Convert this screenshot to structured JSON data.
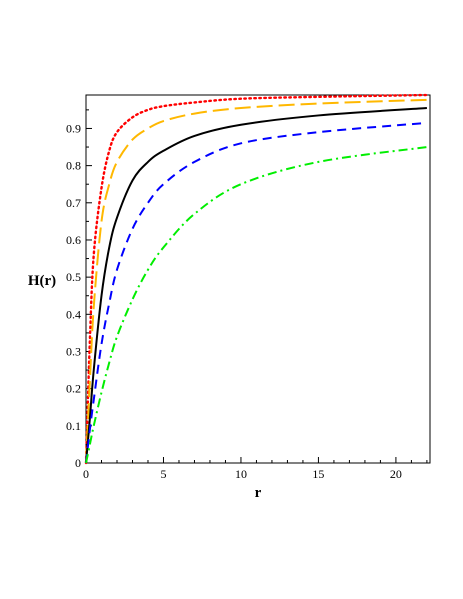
{
  "chart_data": {
    "type": "line",
    "title": "",
    "xlabel": "r",
    "ylabel": "H(r)",
    "xlim": [
      0,
      22.2
    ],
    "ylim": [
      0,
      0.99
    ],
    "x_ticks": [
      0,
      5,
      10,
      15,
      20
    ],
    "y_ticks": [
      0,
      0.1,
      0.2,
      0.3,
      0.4,
      0.5,
      0.6,
      0.7,
      0.8,
      0.9
    ],
    "grid": false,
    "legend": "none",
    "series": [
      {
        "color": "#ff0000",
        "dash": "dotted",
        "x": [
          0,
          0.25,
          0.5,
          1,
          1.5,
          2,
          3,
          4,
          5,
          7,
          10,
          15,
          22
        ],
        "y": [
          0,
          0.33,
          0.56,
          0.74,
          0.84,
          0.89,
          0.93,
          0.95,
          0.96,
          0.97,
          0.98,
          0.985,
          0.99
        ]
      },
      {
        "color": "#ffb800",
        "dash": "longdash",
        "x": [
          0,
          0.25,
          0.5,
          1,
          1.5,
          2,
          3,
          4,
          5,
          7,
          10,
          15,
          22
        ],
        "y": [
          0,
          0.22,
          0.42,
          0.65,
          0.75,
          0.81,
          0.87,
          0.9,
          0.92,
          0.94,
          0.955,
          0.967,
          0.977
        ]
      },
      {
        "color": "#000000",
        "dash": "solid",
        "x": [
          0,
          0.25,
          0.5,
          1,
          1.5,
          2,
          3,
          4,
          5,
          7,
          10,
          15,
          22
        ],
        "y": [
          0,
          0.12,
          0.25,
          0.45,
          0.58,
          0.66,
          0.76,
          0.81,
          0.84,
          0.88,
          0.91,
          0.935,
          0.955
        ]
      },
      {
        "color": "#0000ff",
        "dash": "dash",
        "x": [
          0,
          0.25,
          0.5,
          1,
          1.5,
          2,
          3,
          4,
          5,
          7,
          10,
          15,
          22
        ],
        "y": [
          0,
          0.09,
          0.17,
          0.32,
          0.43,
          0.52,
          0.63,
          0.7,
          0.75,
          0.81,
          0.86,
          0.89,
          0.915
        ]
      },
      {
        "color": "#00ee00",
        "dash": "dashdot",
        "x": [
          0,
          0.25,
          0.5,
          1,
          1.5,
          2,
          3,
          4,
          5,
          7,
          10,
          15,
          22
        ],
        "y": [
          0,
          0.05,
          0.1,
          0.19,
          0.27,
          0.34,
          0.44,
          0.52,
          0.58,
          0.67,
          0.75,
          0.81,
          0.85
        ]
      }
    ]
  }
}
